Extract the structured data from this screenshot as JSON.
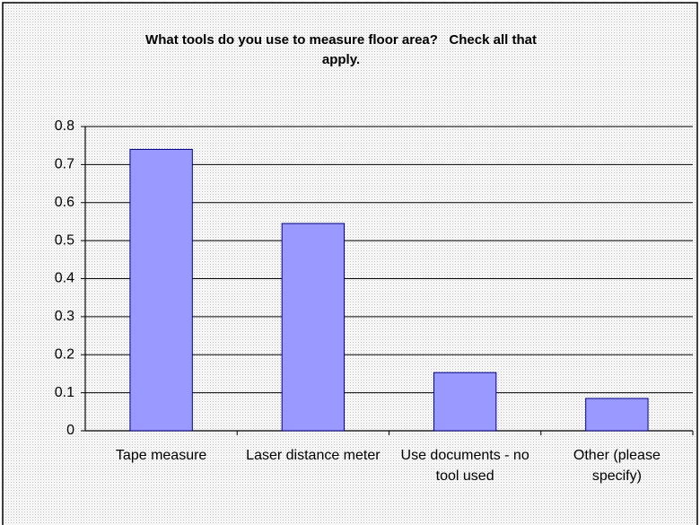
{
  "chart_data": {
    "type": "bar",
    "title": "What tools do you use to measure floor area?   Check all that apply.",
    "categories": [
      "Tape measure",
      "Laser distance meter",
      "Use documents - no tool used",
      "Other (please specify)"
    ],
    "values": [
      0.74,
      0.545,
      0.153,
      0.085
    ],
    "color": "#9999ff",
    "ylim": [
      0,
      0.8
    ],
    "yticks": [
      0,
      0.1,
      0.2,
      0.3,
      0.4,
      0.5,
      0.6,
      0.7,
      0.8
    ],
    "grid": true
  }
}
